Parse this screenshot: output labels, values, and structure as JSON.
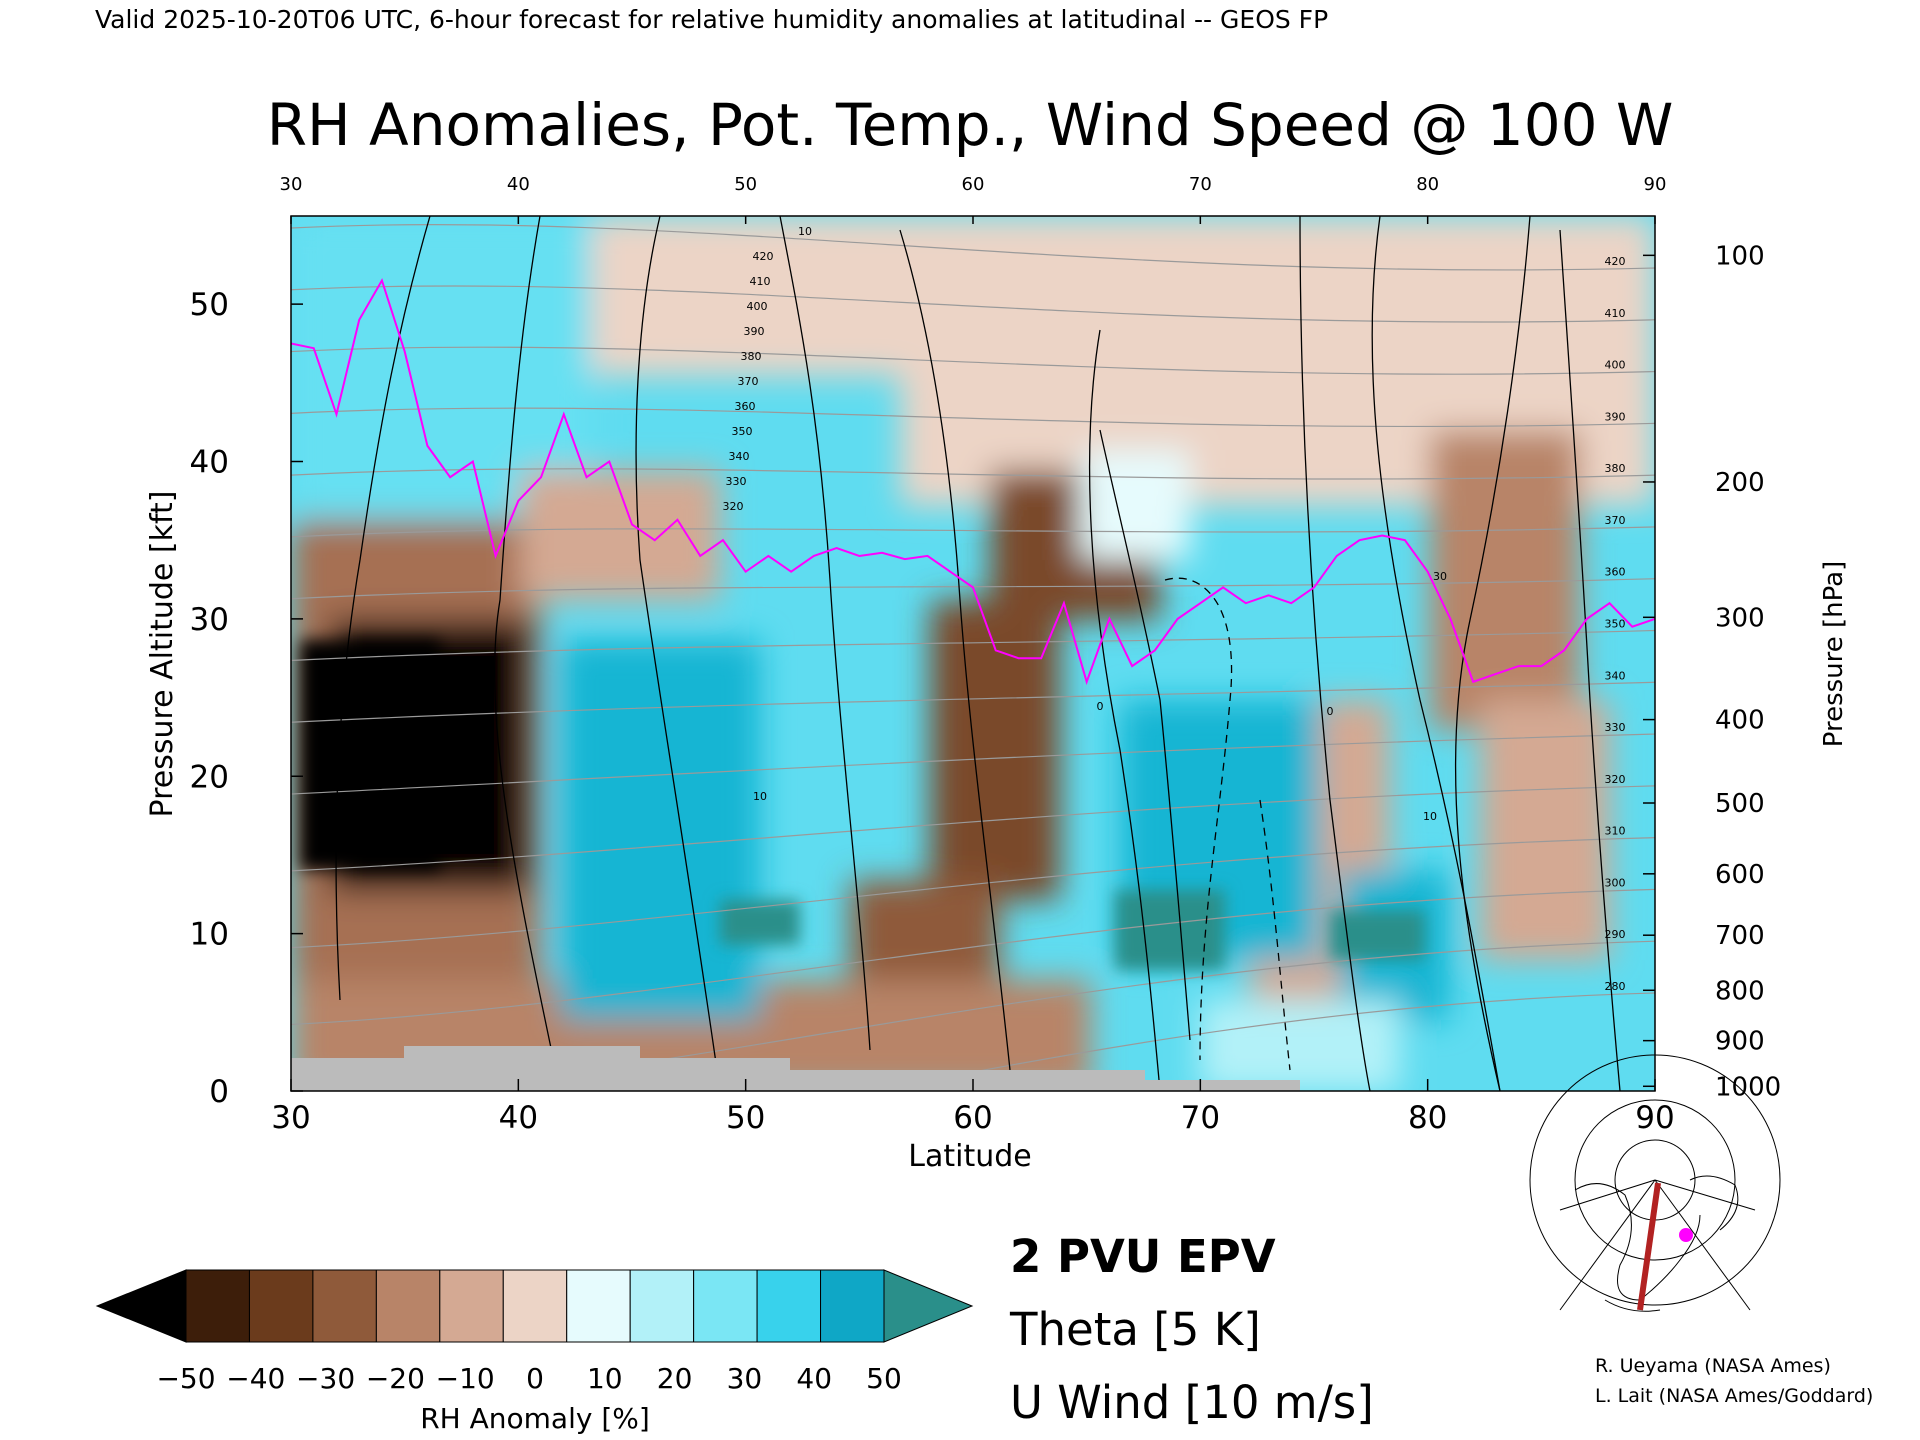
{
  "header": "Valid 2025-10-20T06 UTC, 6-hour forecast for relative humidity anomalies at latitudinal -- GEOS FP",
  "chart_data": {
    "type": "heatmap",
    "title": "RH Anomalies, Pot. Temp., Wind Speed @ 100 W",
    "xlabel": "Latitude",
    "ylabel": "Pressure Altitude [kft]",
    "y2label": "Pressure [hPa]",
    "xlim": [
      30,
      90
    ],
    "ylim": [
      0,
      55.6
    ],
    "x_ticks": [
      "30",
      "40",
      "50",
      "60",
      "70",
      "80",
      "90"
    ],
    "x_top_ticks": [
      "30",
      "40",
      "50",
      "60",
      "70",
      "80",
      "90"
    ],
    "y_ticks": [
      "0",
      "10",
      "20",
      "30",
      "40",
      "50"
    ],
    "y_tick_values": [
      0,
      10,
      20,
      30,
      40,
      50
    ],
    "pressure_ticks": [
      {
        "label": "100",
        "kft": 53.1
      },
      {
        "label": "200",
        "kft": 38.7
      },
      {
        "label": "300",
        "kft": 30.1
      },
      {
        "label": "400",
        "kft": 23.6
      },
      {
        "label": "500",
        "kft": 18.3
      },
      {
        "label": "600",
        "kft": 13.8
      },
      {
        "label": "700",
        "kft": 9.9
      },
      {
        "label": "800",
        "kft": 6.4
      },
      {
        "label": "900",
        "kft": 3.2
      },
      {
        "label": "1000",
        "kft": 0.3
      }
    ],
    "colorbar": {
      "label": "RH Anomaly [%]",
      "ticks": [
        "−50",
        "−40",
        "−30",
        "−20",
        "−10",
        "0",
        "10",
        "20",
        "30",
        "40",
        "50"
      ],
      "colors": [
        "#3d1e0a",
        "#6b3b1c",
        "#8f5a3a",
        "#b88468",
        "#d4a993",
        "#ecd4c6",
        "#e6fbfd",
        "#b2f1f8",
        "#7ae6f4",
        "#38d2ec",
        "#0fa7c6"
      ],
      "under_color": "#000000",
      "over_color": "#2a8f8a"
    },
    "theta_labels": [
      "420",
      "410",
      "400",
      "390",
      "380",
      "370",
      "360",
      "350",
      "340",
      "330",
      "320",
      "310",
      "300",
      "290",
      "280"
    ],
    "wind_labels": [
      "10",
      "30",
      "0"
    ],
    "legend": [
      {
        "label": "2 PVU EPV",
        "color": "#ff00ff"
      },
      {
        "label": "Theta [5 K]",
        "color": "#aaaaaa"
      },
      {
        "label": "U Wind [10 m/s]",
        "color": "#000000"
      }
    ],
    "epv_2pvu": [
      [
        30,
        47.5
      ],
      [
        31,
        47.2
      ],
      [
        32,
        43
      ],
      [
        33,
        49
      ],
      [
        34,
        51.5
      ],
      [
        35,
        47
      ],
      [
        36,
        41
      ],
      [
        37,
        39
      ],
      [
        38,
        40
      ],
      [
        39,
        34
      ],
      [
        40,
        37.5
      ],
      [
        41,
        39
      ],
      [
        42,
        43
      ],
      [
        43,
        39
      ],
      [
        44,
        40
      ],
      [
        45,
        36
      ],
      [
        46,
        35
      ],
      [
        47,
        36.3
      ],
      [
        48,
        34
      ],
      [
        49,
        35
      ],
      [
        50,
        33
      ],
      [
        51,
        34
      ],
      [
        52,
        33
      ],
      [
        53,
        34
      ],
      [
        54,
        34.5
      ],
      [
        55,
        34
      ],
      [
        56,
        34.2
      ],
      [
        57,
        33.8
      ],
      [
        58,
        34
      ],
      [
        59,
        33
      ],
      [
        60,
        32
      ],
      [
        61,
        28
      ],
      [
        62,
        27.5
      ],
      [
        63,
        27.5
      ],
      [
        64,
        31
      ],
      [
        65,
        26
      ],
      [
        66,
        30
      ],
      [
        67,
        27
      ],
      [
        68,
        28
      ],
      [
        69,
        30
      ],
      [
        70,
        31
      ],
      [
        71,
        32
      ],
      [
        72,
        31
      ],
      [
        73,
        31.5
      ],
      [
        74,
        31
      ],
      [
        75,
        32
      ],
      [
        76,
        34
      ],
      [
        77,
        35
      ],
      [
        78,
        35.3
      ],
      [
        79,
        35
      ],
      [
        80,
        33
      ],
      [
        81,
        30
      ],
      [
        82,
        26
      ],
      [
        83,
        26.5
      ],
      [
        84,
        27
      ],
      [
        85,
        27
      ],
      [
        86,
        28
      ],
      [
        87,
        30
      ],
      [
        88,
        31
      ],
      [
        89,
        29.5
      ],
      [
        90,
        30
      ]
    ],
    "credits": [
      "R. Ueyama (NASA Ames)",
      "L. Lait (NASA Ames/Goddard)"
    ]
  }
}
